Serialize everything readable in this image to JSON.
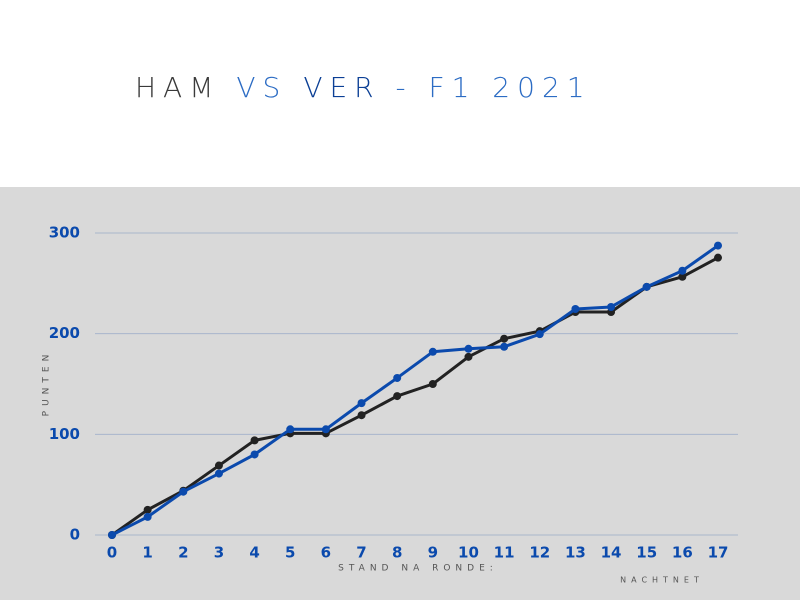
{
  "chart_data": {
    "type": "line",
    "title_parts": [
      {
        "text": "HAM",
        "color": "#3a3a3a"
      },
      {
        "text": "VS",
        "color": "#2c6cc4"
      },
      {
        "text": "VER",
        "color": "#0b3f95"
      },
      {
        "text": "- F1 2021",
        "color": "#2c6cc4"
      }
    ],
    "y_label": "PUNTEN",
    "x_label": "STAND NA RONDE:",
    "credit": "NACHTNET",
    "x": [
      0,
      1,
      2,
      3,
      4,
      5,
      6,
      7,
      8,
      9,
      10,
      11,
      12,
      13,
      14,
      15,
      16,
      17
    ],
    "series": [
      {
        "color": "#222222",
        "values": [
          0,
          25,
          44,
          69,
          94,
          101,
          101,
          119,
          138,
          150,
          177,
          195,
          202.5,
          221.5,
          221.5,
          246.5,
          256.5,
          275.5
        ]
      },
      {
        "color": "#0b4aad",
        "values": [
          0,
          18,
          43,
          61,
          80,
          105,
          105,
          131,
          156,
          182,
          185,
          187,
          199.5,
          224.5,
          226.5,
          246.5,
          262.5,
          287.5
        ]
      }
    ],
    "xlim": [
      0,
      17
    ],
    "xticks": [
      0,
      1,
      2,
      3,
      4,
      5,
      6,
      7,
      8,
      9,
      10,
      11,
      12,
      13,
      14,
      15,
      16,
      17
    ],
    "ylim": [
      0,
      300
    ],
    "yticks": [
      0,
      100,
      200,
      300
    ],
    "grid": true
  }
}
